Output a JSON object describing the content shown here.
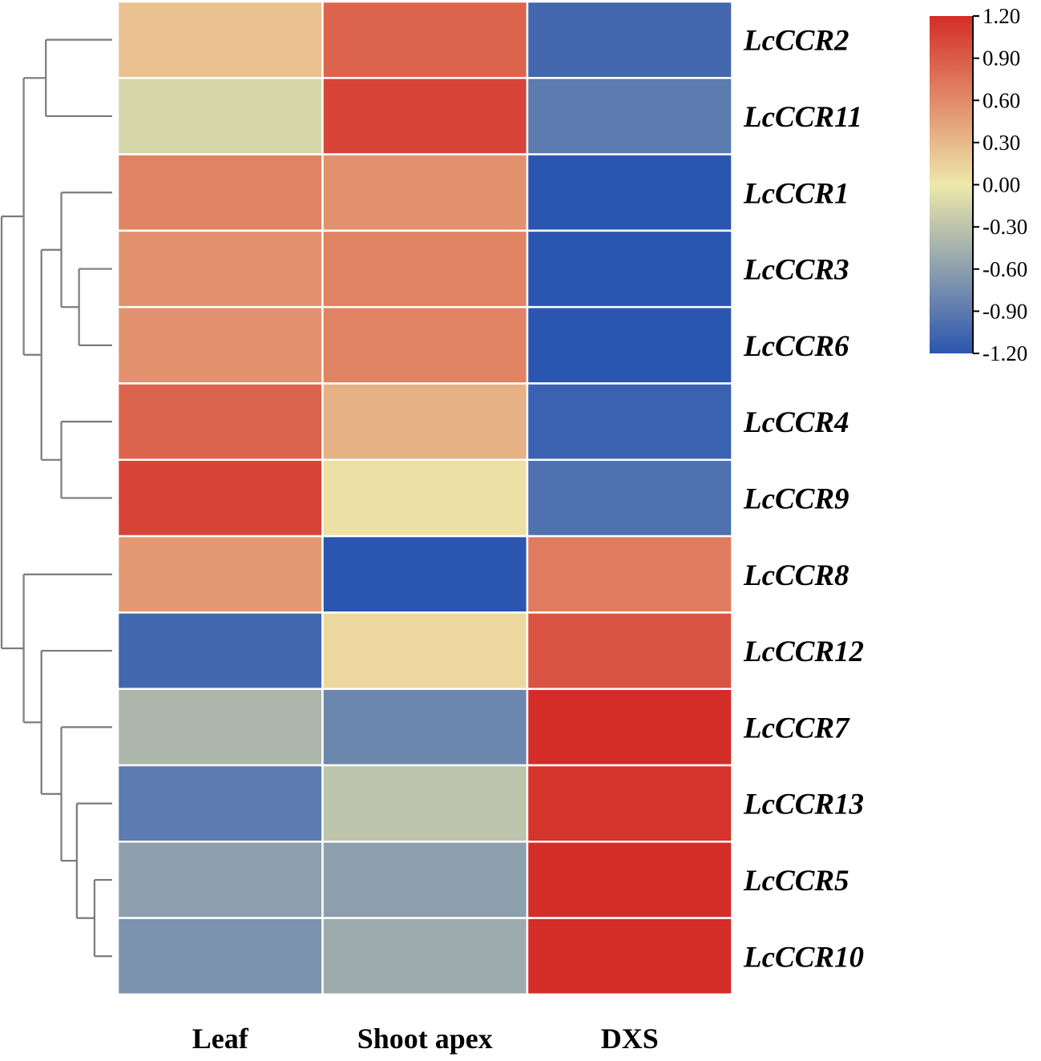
{
  "chart_data": {
    "type": "heatmap",
    "title": "",
    "columns": [
      "Leaf",
      "Shoot apex",
      "DXS"
    ],
    "rows": [
      "LcCCR2",
      "LcCCR11",
      "LcCCR1",
      "LcCCR3",
      "LcCCR6",
      "LcCCR4",
      "LcCCR9",
      "LcCCR8",
      "LcCCR12",
      "LcCCR7",
      "LcCCR13",
      "LcCCR5",
      "LcCCR10"
    ],
    "values": [
      [
        0.25,
        0.85,
        -1.05
      ],
      [
        -0.15,
        1.05,
        -0.9
      ],
      [
        0.65,
        0.55,
        -1.2
      ],
      [
        0.55,
        0.65,
        -1.2
      ],
      [
        0.55,
        0.65,
        -1.2
      ],
      [
        0.85,
        0.35,
        -1.1
      ],
      [
        1.05,
        0.05,
        -0.98
      ],
      [
        0.5,
        -1.2,
        0.7
      ],
      [
        -1.05,
        0.1,
        0.95
      ],
      [
        -0.4,
        -0.8,
        1.2
      ],
      [
        -0.9,
        -0.3,
        1.15
      ],
      [
        -0.6,
        -0.6,
        1.2
      ],
      [
        -0.7,
        -0.5,
        1.2
      ]
    ],
    "colorbar": {
      "ticks": [
        "1.20",
        "0.90",
        "0.60",
        "0.30",
        "0.00",
        "-0.30",
        "-0.60",
        "-0.90",
        "-1.20"
      ],
      "range": [
        -1.2,
        1.2
      ],
      "colors": [
        "#2b56b0",
        "#eee8aa",
        "#d42d27"
      ]
    },
    "dendrogram": {
      "leaf_order": [
        "LcCCR2",
        "LcCCR11",
        "LcCCR1",
        "LcCCR3",
        "LcCCR6",
        "LcCCR4",
        "LcCCR9",
        "LcCCR8",
        "LcCCR12",
        "LcCCR7",
        "LcCCR13",
        "LcCCR5",
        "LcCCR10"
      ],
      "merges": [
        {
          "id": "m1",
          "children": [
            "LcCCR2",
            "LcCCR11"
          ],
          "height": 0.3
        },
        {
          "id": "m2",
          "children": [
            "LcCCR3",
            "LcCCR6"
          ],
          "height": 0.15
        },
        {
          "id": "m3",
          "children": [
            "LcCCR1",
            "m2"
          ],
          "height": 0.23
        },
        {
          "id": "m4",
          "children": [
            "LcCCR4",
            "LcCCR9"
          ],
          "height": 0.23
        },
        {
          "id": "m5",
          "children": [
            "m3",
            "m4"
          ],
          "height": 0.32
        },
        {
          "id": "m6",
          "children": [
            "m1",
            "m5"
          ],
          "height": 0.4
        },
        {
          "id": "m7",
          "children": [
            "LcCCR5",
            "LcCCR10"
          ],
          "height": 0.08
        },
        {
          "id": "m8",
          "children": [
            "LcCCR13",
            "m7"
          ],
          "height": 0.16
        },
        {
          "id": "m9",
          "children": [
            "LcCCR7",
            "m8"
          ],
          "height": 0.23
        },
        {
          "id": "m10",
          "children": [
            "LcCCR12",
            "m9"
          ],
          "height": 0.32
        },
        {
          "id": "m11",
          "children": [
            "LcCCR8",
            "m10"
          ],
          "height": 0.4
        },
        {
          "id": "m12",
          "children": [
            "m6",
            "m11"
          ],
          "height": 0.5
        }
      ]
    }
  }
}
